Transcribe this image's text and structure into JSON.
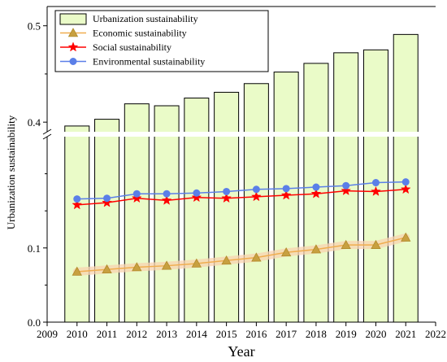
{
  "chart_data": {
    "type": "bar",
    "xlabel": "Year",
    "ylabel": "Urbanization sustainability",
    "x": [
      2010,
      2011,
      2012,
      2013,
      2014,
      2015,
      2016,
      2017,
      2018,
      2019,
      2020,
      2021
    ],
    "x_ticks": [
      "2009",
      "2010",
      "2011",
      "2012",
      "2013",
      "2014",
      "2015",
      "2016",
      "2017",
      "2018",
      "2019",
      "2020",
      "2021",
      "2022"
    ],
    "xlim": [
      2009,
      2022
    ],
    "y_axis_break": {
      "lower_range": [
        0.0,
        0.25
      ],
      "upper_range": [
        0.39,
        0.52
      ]
    },
    "y_ticks": [
      "0.0",
      "0.1",
      "0.4",
      "0.5"
    ],
    "series": [
      {
        "name": "Urbanization sustainability",
        "kind": "bar",
        "color": "#eafbc8",
        "values": [
          0.396,
          0.403,
          0.419,
          0.417,
          0.425,
          0.431,
          0.44,
          0.452,
          0.461,
          0.472,
          0.475,
          0.491
        ]
      },
      {
        "name": "Economic sustainability",
        "kind": "line",
        "marker": "triangle",
        "color": "#f0ad4e",
        "values": [
          0.068,
          0.071,
          0.074,
          0.076,
          0.079,
          0.083,
          0.087,
          0.094,
          0.098,
          0.104,
          0.104,
          0.114
        ]
      },
      {
        "name": "Social sustainability",
        "kind": "line",
        "marker": "star",
        "color": "#ff0000",
        "values": [
          0.158,
          0.161,
          0.167,
          0.164,
          0.168,
          0.167,
          0.169,
          0.171,
          0.173,
          0.177,
          0.176,
          0.179
        ]
      },
      {
        "name": "Environmental sustainability",
        "kind": "line",
        "marker": "circle",
        "color": "#5b7fe8",
        "values": [
          0.166,
          0.167,
          0.173,
          0.173,
          0.174,
          0.176,
          0.179,
          0.18,
          0.182,
          0.184,
          0.188,
          0.189
        ]
      }
    ],
    "legend_position": "top-left"
  }
}
